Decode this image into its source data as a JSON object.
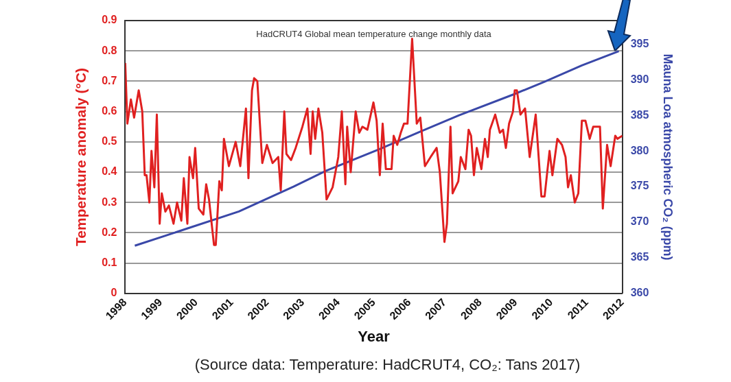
{
  "chart_data": {
    "type": "line",
    "title": "HadCRUT4 Global mean temperature change monthly data",
    "xlabel": "Year",
    "ylabel": "Temperature anomaly (°C)",
    "y2label": "Mauna Loa atmospheric CO₂ (ppm)",
    "annotations": [
      "(Source data: Temperature: HadCRUT4, CO₂: Tans 2017)"
    ],
    "xlim": [
      1998,
      2012
    ],
    "xticks": [
      1998,
      1999,
      2000,
      2001,
      2002,
      2003,
      2004,
      2005,
      2006,
      2007,
      2008,
      2009,
      2010,
      2011,
      2012
    ],
    "ylim": [
      0,
      0.9
    ],
    "yticks": [
      0,
      0.1,
      0.2,
      0.3,
      0.4,
      0.5,
      0.6,
      0.7,
      0.8,
      0.9
    ],
    "y2lim": [
      360,
      398.3
    ],
    "y2ticks": [
      360,
      365,
      370,
      375,
      380,
      385,
      390,
      395
    ],
    "grid": "y",
    "marker": "none",
    "line_style": "solid",
    "series": [
      {
        "color": "#e02020",
        "x": [
          1998.0,
          1998.06,
          1998.16,
          1998.25,
          1998.38,
          1998.48,
          1998.55,
          1998.6,
          1998.68,
          1998.74,
          1998.82,
          1998.89,
          1998.97,
          1999.03,
          1999.13,
          1999.23,
          1999.36,
          1999.46,
          1999.58,
          1999.65,
          1999.75,
          1999.81,
          1999.91,
          1999.97,
          2000.07,
          2000.2,
          2000.28,
          2000.36,
          2000.5,
          2000.55,
          2000.65,
          2000.72,
          2000.78,
          2000.92,
          2001.11,
          2001.24,
          2001.4,
          2001.47,
          2001.57,
          2001.63,
          2001.72,
          2001.86,
          2001.99,
          2002.15,
          2002.31,
          2002.38,
          2002.48,
          2002.54,
          2002.67,
          2002.8,
          2002.99,
          2003.13,
          2003.22,
          2003.28,
          2003.35,
          2003.44,
          2003.55,
          2003.67,
          2003.84,
          2004.0,
          2004.1,
          2004.2,
          2004.25,
          2004.35,
          2004.49,
          2004.59,
          2004.68,
          2004.82,
          2004.99,
          2005.08,
          2005.17,
          2005.25,
          2005.34,
          2005.5,
          2005.56,
          2005.66,
          2005.76,
          2005.85,
          2005.95,
          2006.08,
          2006.21,
          2006.31,
          2006.44,
          2006.6,
          2006.77,
          2006.86,
          2006.99,
          2007.06,
          2007.16,
          2007.22,
          2007.38,
          2007.45,
          2007.58,
          2007.67,
          2007.74,
          2007.82,
          2007.9,
          2008.03,
          2008.13,
          2008.21,
          2008.27,
          2008.42,
          2008.55,
          2008.64,
          2008.72,
          2008.81,
          2008.92,
          2008.97,
          2009.03,
          2009.13,
          2009.26,
          2009.39,
          2009.56,
          2009.72,
          2009.81,
          2009.95,
          2010.03,
          2010.17,
          2010.3,
          2010.4,
          2010.47,
          2010.55,
          2010.66,
          2010.76,
          2010.86,
          2010.96,
          2011.08,
          2011.18,
          2011.37,
          2011.45,
          2011.57,
          2011.67,
          2011.8,
          2011.86,
          2012.0
        ],
        "values": [
          0.76,
          0.56,
          0.64,
          0.58,
          0.67,
          0.6,
          0.39,
          0.39,
          0.3,
          0.47,
          0.35,
          0.59,
          0.23,
          0.33,
          0.27,
          0.29,
          0.23,
          0.3,
          0.24,
          0.38,
          0.23,
          0.45,
          0.38,
          0.48,
          0.28,
          0.26,
          0.36,
          0.31,
          0.16,
          0.16,
          0.37,
          0.34,
          0.51,
          0.42,
          0.5,
          0.42,
          0.61,
          0.38,
          0.67,
          0.71,
          0.7,
          0.43,
          0.49,
          0.43,
          0.45,
          0.34,
          0.6,
          0.46,
          0.44,
          0.48,
          0.55,
          0.61,
          0.46,
          0.6,
          0.51,
          0.61,
          0.53,
          0.31,
          0.35,
          0.45,
          0.6,
          0.36,
          0.55,
          0.4,
          0.6,
          0.53,
          0.55,
          0.54,
          0.63,
          0.57,
          0.39,
          0.56,
          0.41,
          0.41,
          0.52,
          0.49,
          0.53,
          0.56,
          0.56,
          0.84,
          0.56,
          0.58,
          0.42,
          0.45,
          0.48,
          0.4,
          0.17,
          0.23,
          0.55,
          0.33,
          0.37,
          0.45,
          0.41,
          0.54,
          0.52,
          0.39,
          0.48,
          0.41,
          0.51,
          0.45,
          0.54,
          0.59,
          0.53,
          0.54,
          0.48,
          0.56,
          0.6,
          0.67,
          0.67,
          0.59,
          0.61,
          0.45,
          0.59,
          0.32,
          0.32,
          0.47,
          0.39,
          0.51,
          0.49,
          0.45,
          0.35,
          0.39,
          0.3,
          0.33,
          0.57,
          0.57,
          0.51,
          0.55,
          0.55,
          0.28,
          0.49,
          0.42,
          0.52,
          0.51,
          0.52
        ]
      },
      {
        "color": "#3a48a8",
        "axis": "y2",
        "x": [
          1998.27,
          1999.8,
          2001.2,
          2002.74,
          2003.65,
          2005.13,
          2006.3,
          2007.4,
          2008.97,
          2009.8,
          2010.86,
          2011.9
        ],
        "values": [
          366.7,
          369.2,
          371.5,
          375.0,
          377.2,
          380.2,
          382.7,
          385.0,
          388.0,
          389.7,
          392.0,
          394.0
        ]
      }
    ]
  }
}
